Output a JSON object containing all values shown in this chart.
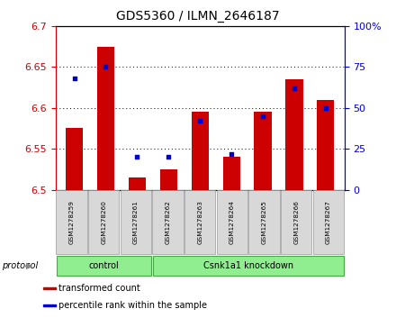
{
  "title": "GDS5360 / ILMN_2646187",
  "samples": [
    "GSM1278259",
    "GSM1278260",
    "GSM1278261",
    "GSM1278262",
    "GSM1278263",
    "GSM1278264",
    "GSM1278265",
    "GSM1278266",
    "GSM1278267"
  ],
  "transformed_count": [
    6.575,
    6.675,
    6.515,
    6.525,
    6.595,
    6.54,
    6.595,
    6.635,
    6.61
  ],
  "percentile_rank": [
    68,
    75,
    20,
    20,
    42,
    22,
    45,
    62,
    50
  ],
  "ylim_left": [
    6.5,
    6.7
  ],
  "ylim_right": [
    0,
    100
  ],
  "yticks_left": [
    6.5,
    6.55,
    6.6,
    6.65,
    6.7
  ],
  "yticks_right": [
    0,
    25,
    50,
    75,
    100
  ],
  "bar_color": "#cc0000",
  "dot_color": "#0000cc",
  "left_tick_color": "#cc0000",
  "right_tick_color": "#0000cc",
  "protocol_groups": [
    {
      "label": "control",
      "start": 0,
      "end": 3,
      "color": "#90ee90"
    },
    {
      "label": "Csnk1a1 knockdown",
      "start": 3,
      "end": 9,
      "color": "#90ee90"
    }
  ],
  "protocol_label": "protocol",
  "legend_items": [
    {
      "label": "transformed count",
      "color": "#cc0000"
    },
    {
      "label": "percentile rank within the sample",
      "color": "#0000cc"
    }
  ],
  "bar_width": 0.55,
  "bg_color": "#f0f0f0",
  "plot_bg_color": "#ffffff",
  "grid_color": "#000000"
}
